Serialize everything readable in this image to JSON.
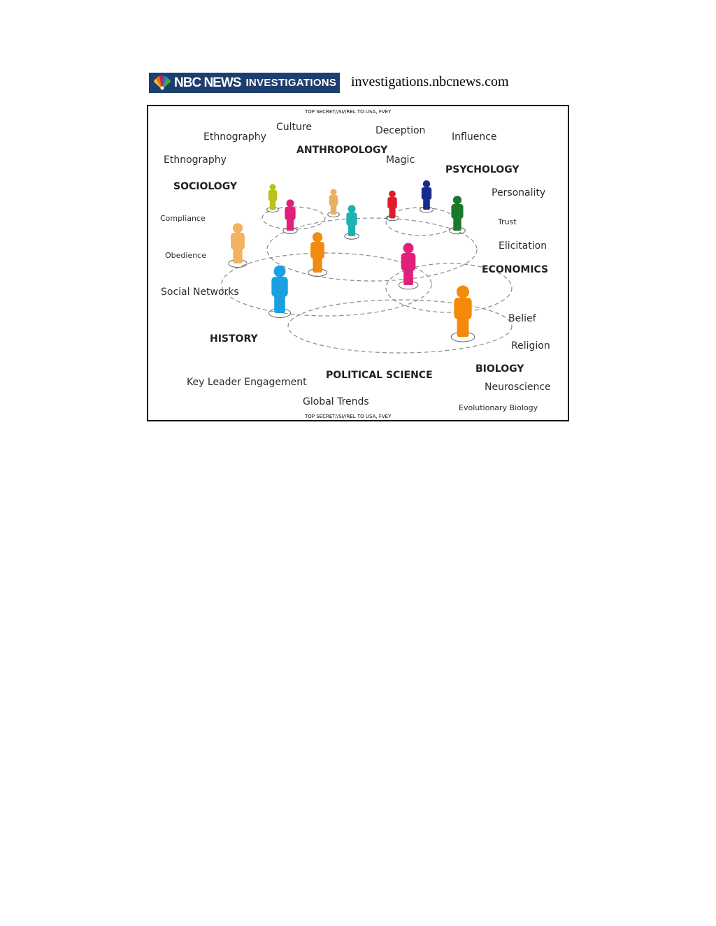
{
  "header": {
    "logo_brand": "NBC NEWS",
    "logo_section": "INVESTIGATIONS",
    "url": "investigations.nbcnews.com"
  },
  "slide": {
    "classification_top": "TOP SECRET//SI//REL TO USA, FVEY",
    "classification_bottom": "TOP SECRET//SI//REL TO USA, FVEY",
    "terms": {
      "ethnography_1": "Ethnography",
      "culture": "Culture",
      "deception": "Deception",
      "influence": "Influence",
      "ethnography_2": "Ethnography",
      "magic": "Magic",
      "personality": "Personality",
      "compliance": "Compliance",
      "trust": "Trust",
      "elicitation": "Elicitation",
      "obedience": "Obedience",
      "social_networks": "Social Networks",
      "belief": "Belief",
      "religion": "Religion",
      "neuroscience": "Neuroscience",
      "key_leader_engagement": "Key Leader Engagement",
      "global_trends": "Global Trends",
      "evolutionary_biology": "Evolutionary Biology"
    },
    "disciplines": {
      "anthropology": "ANTHROPOLOGY",
      "psychology": "PSYCHOLOGY",
      "sociology": "SOCIOLOGY",
      "economics": "ECONOMICS",
      "history": "HISTORY",
      "political_science": "POLITICAL SCIENCE",
      "biology": "BIOLOGY"
    },
    "figure_colors": [
      "#b8c31a",
      "#e0207a",
      "#e8b060",
      "#1fb0b0",
      "#e01e2a",
      "#1a2a8c",
      "#1a7a2a",
      "#f2b260",
      "#f08a10",
      "#e0207a",
      "#1aa0e0",
      "#f58a0a"
    ]
  }
}
